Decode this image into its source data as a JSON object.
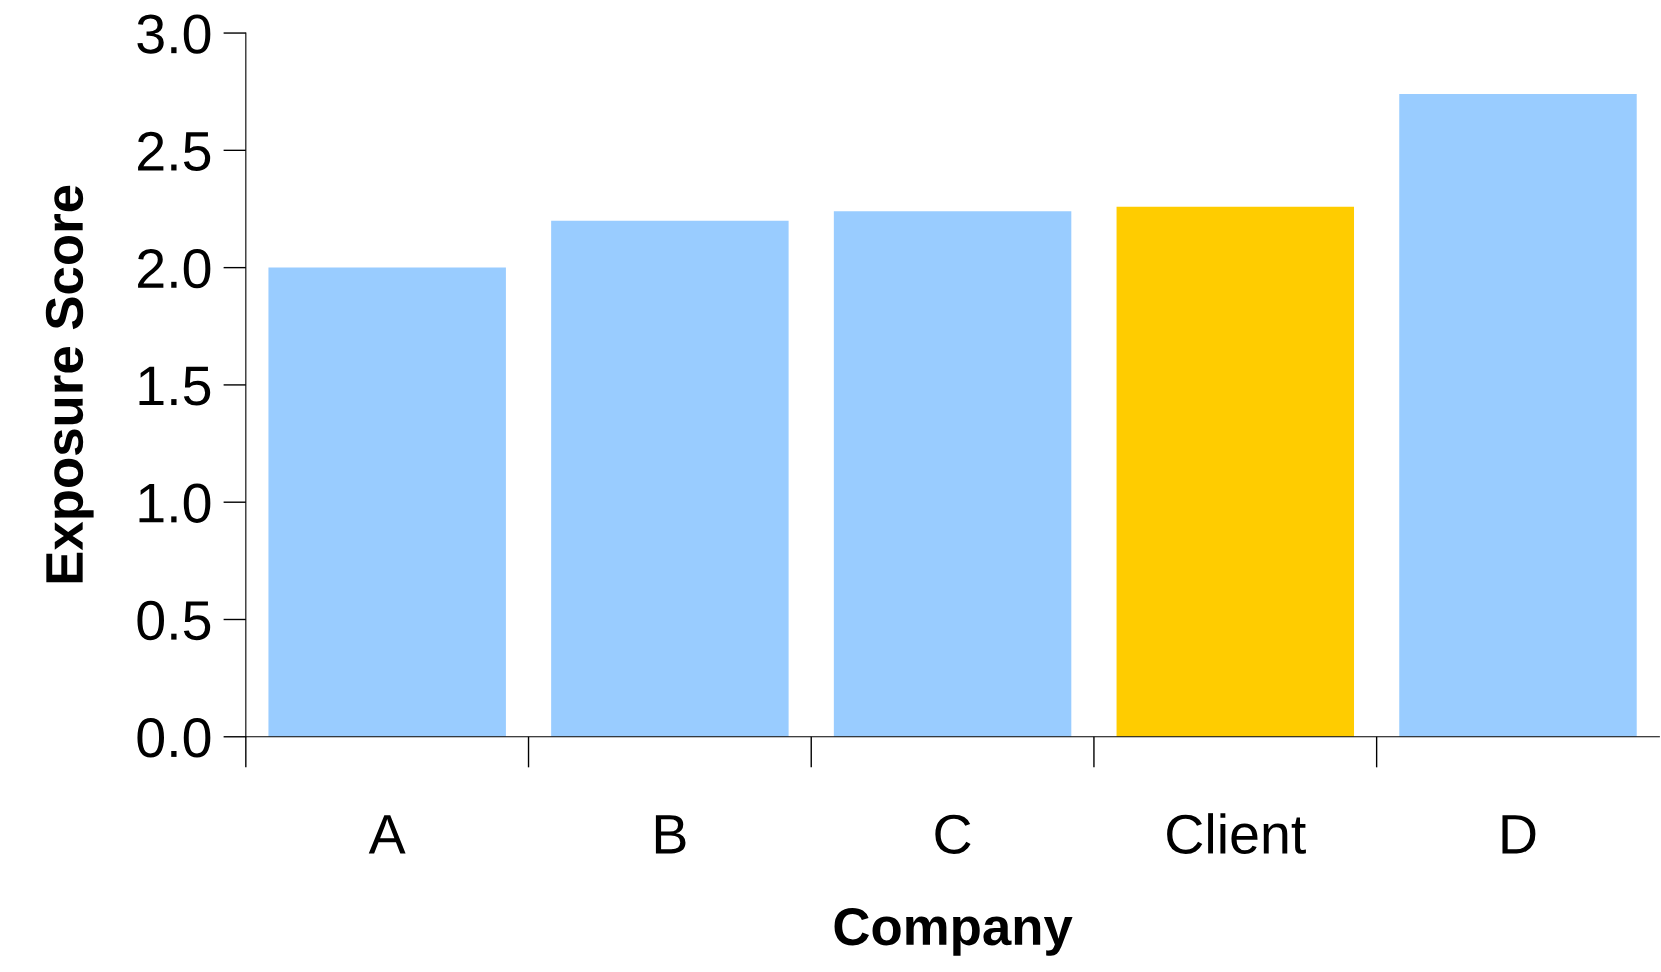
{
  "chart_data": {
    "type": "bar",
    "xlabel": "Company",
    "ylabel": "Exposure Score",
    "categories": [
      "A",
      "B",
      "C",
      "Client",
      "D"
    ],
    "values": [
      2.0,
      2.2,
      2.24,
      2.26,
      2.74
    ],
    "colors": [
      "#99ccff",
      "#99ccff",
      "#99ccff",
      "#ffcc00",
      "#99ccff"
    ],
    "ylim": [
      0,
      3.0
    ],
    "yticks": [
      {
        "value": 0,
        "label": "0.0"
      },
      {
        "value": 0.5,
        "label": "0.5"
      },
      {
        "value": 1.0,
        "label": "1.0"
      },
      {
        "value": 1.5,
        "label": "1.5"
      },
      {
        "value": 2.0,
        "label": "2.0"
      },
      {
        "value": 2.5,
        "label": "2.5"
      },
      {
        "value": 3.0,
        "label": "3.0"
      }
    ]
  }
}
